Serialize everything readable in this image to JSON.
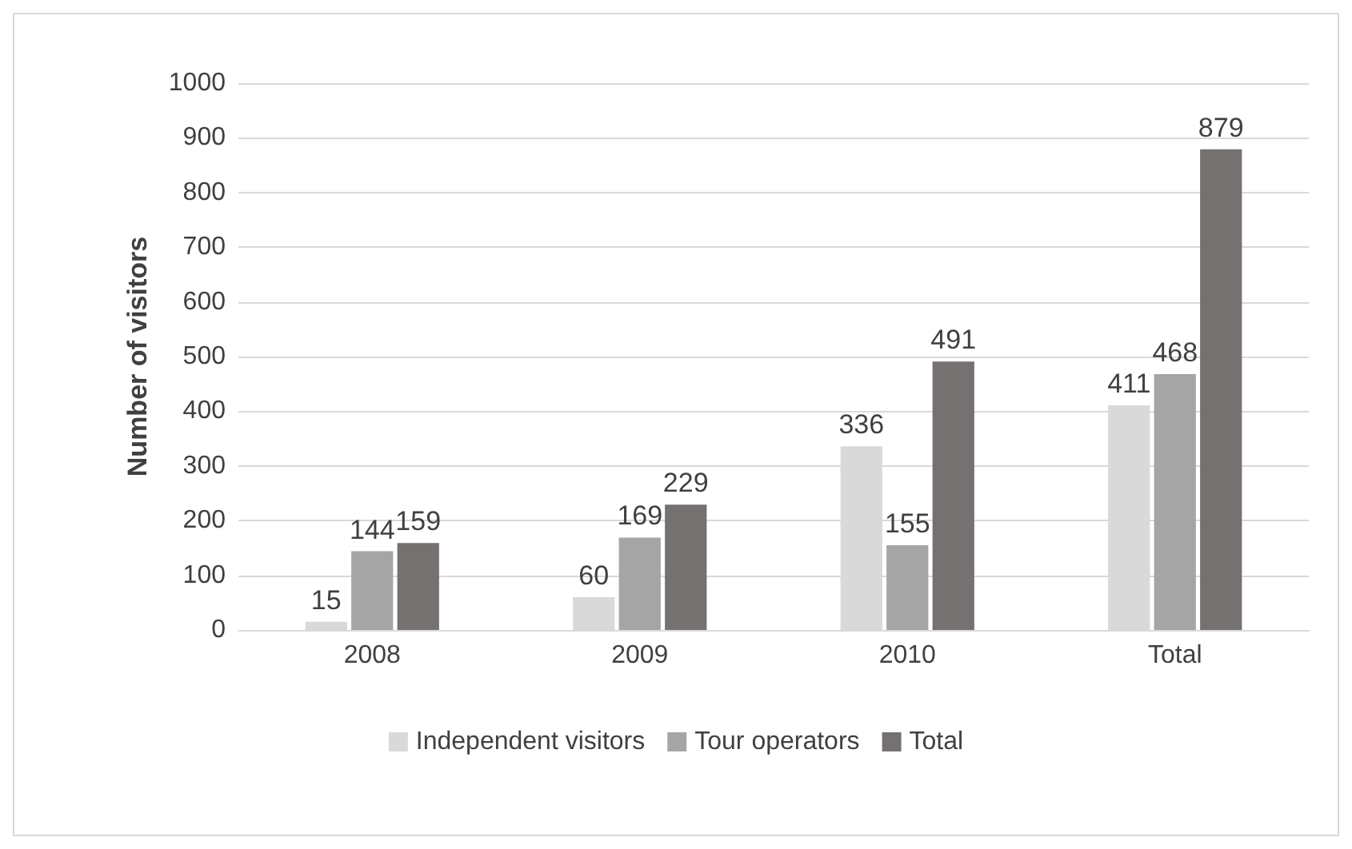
{
  "chart_data": {
    "type": "bar",
    "ylabel": "Number of visitors",
    "categories": [
      "2008",
      "2009",
      "2010",
      "Total"
    ],
    "series": [
      {
        "name": "Independent visitors",
        "color": "#d9d9d9",
        "values": [
          15,
          60,
          336,
          411
        ]
      },
      {
        "name": "Tour operators",
        "color": "#a5a5a5",
        "values": [
          144,
          169,
          155,
          468
        ]
      },
      {
        "name": "Total",
        "color": "#767171",
        "values": [
          159,
          229,
          491,
          879
        ]
      }
    ],
    "ylim": [
      0,
      1000
    ],
    "yticks": [
      0,
      100,
      200,
      300,
      400,
      500,
      600,
      700,
      800,
      900,
      1000
    ],
    "grid": "y",
    "legend": "bottom",
    "data_labels": true
  }
}
